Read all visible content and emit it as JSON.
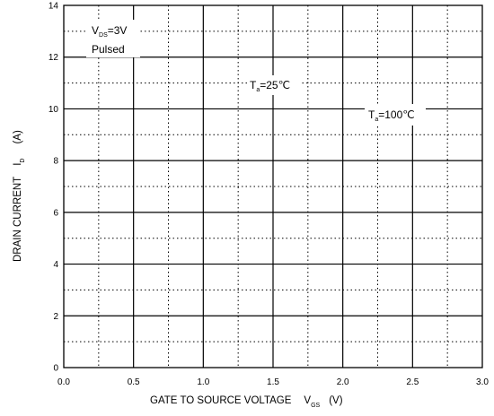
{
  "chart_data": {
    "type": "line",
    "title": "",
    "xlabel": {
      "main": "GATE TO SOURCE VOLTAGE",
      "var": "V",
      "sub": "GS",
      "unit": "(V)"
    },
    "ylabel": {
      "main": "DRAIN CURRENT",
      "var": "I",
      "sub": "D",
      "unit": "(A)"
    },
    "xlim": [
      0.0,
      3.0
    ],
    "ylim": [
      0,
      14
    ],
    "x_ticks": [
      "0.0",
      "0.5",
      "1.0",
      "1.5",
      "2.0",
      "2.5",
      "3.0"
    ],
    "y_ticks": [
      "0",
      "2",
      "4",
      "6",
      "8",
      "10",
      "12",
      "14"
    ],
    "grid": "major solid, minor dotted",
    "series": [],
    "annotations": {
      "condition": {
        "var": "V",
        "sub": "DS",
        "value": "=3V",
        "line2": "Pulsed"
      },
      "t25": {
        "var": "T",
        "sub": "a",
        "value": "=25℃"
      },
      "t100": {
        "var": "T",
        "sub": "a",
        "value": "=100℃"
      }
    }
  }
}
